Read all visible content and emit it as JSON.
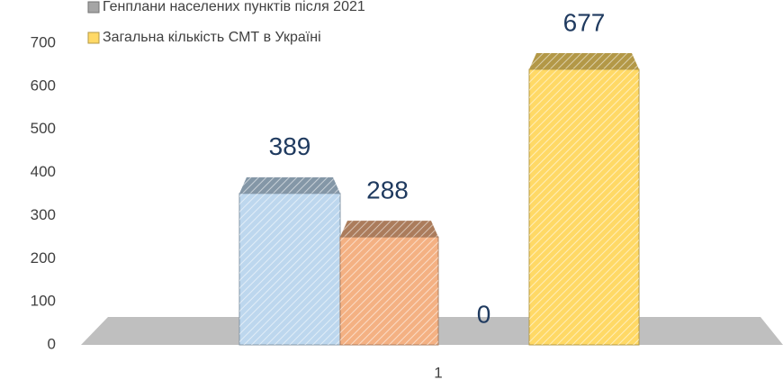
{
  "chart_data": {
    "type": "bar3d",
    "categories": [
      "1"
    ],
    "series": [
      {
        "color": "#bdd7ee",
        "values": [
          389
        ]
      },
      {
        "color": "#f4b183",
        "values": [
          288
        ]
      },
      {
        "name": "Генплани населених пунктів після 2021",
        "color": "#a5a5a5",
        "values": [
          0
        ]
      },
      {
        "name": "Загальна кількість СМТ в Україні",
        "color": "#ffd966",
        "values": [
          677
        ]
      }
    ],
    "ylim": [
      0,
      700
    ],
    "yticks": [
      0,
      100,
      200,
      300,
      400,
      500,
      600,
      700
    ],
    "grid": false,
    "legend": "top-left"
  }
}
